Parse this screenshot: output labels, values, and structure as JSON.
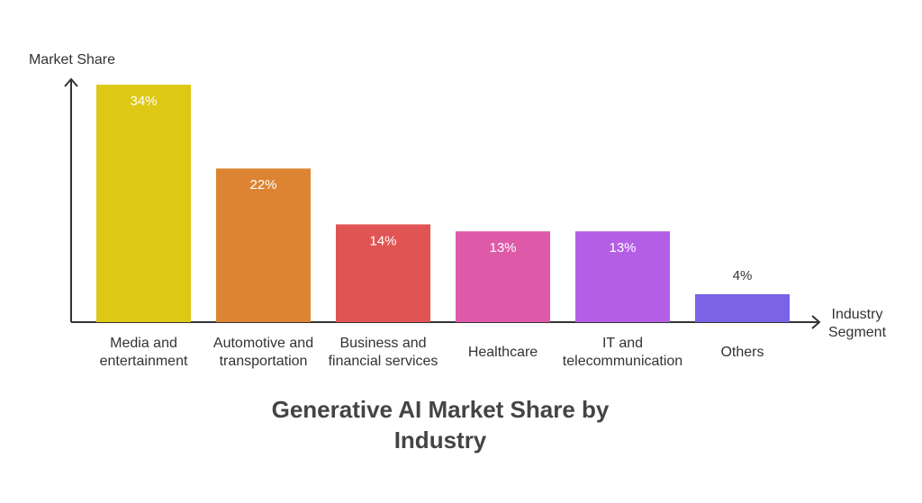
{
  "chart_data": {
    "type": "bar",
    "title": "Generative AI Market Share by Industry",
    "y_label": "Market Share",
    "x_label": "Industry Segment",
    "categories": [
      "Media and entertainment",
      "Automotive and transportation",
      "Business and financial services",
      "Healthcare",
      "IT and telecommunication",
      "Others"
    ],
    "values": [
      34,
      22,
      14,
      13,
      13,
      4
    ],
    "value_labels": [
      "34%",
      "22%",
      "14%",
      "13%",
      "13%",
      "4%"
    ],
    "colors": [
      "#ddc815",
      "#dd8433",
      "#e05553",
      "#de5aa8",
      "#b45ee6",
      "#7b62e6"
    ],
    "ylim": [
      0,
      35
    ]
  }
}
